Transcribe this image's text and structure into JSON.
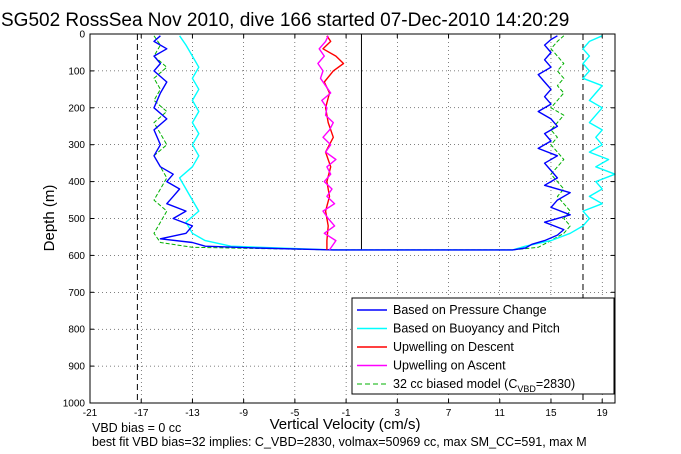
{
  "chart_data": {
    "type": "line",
    "title": "SG502 RossSea Nov 2010, dive 166 started 07-Dec-2010 14:20:29",
    "xlabel": "Vertical Velocity (cm/s)",
    "ylabel": "Depth (m)",
    "xlim": [
      -21,
      20
    ],
    "ylim": [
      1000,
      0
    ],
    "y_reversed": true,
    "x_ticks": [
      "-21",
      "-17",
      "-13",
      "-9",
      "-5",
      "-1",
      "3",
      "7",
      "11",
      "15",
      "19"
    ],
    "y_ticks": [
      "0",
      "100",
      "200",
      "300",
      "400",
      "500",
      "600",
      "700",
      "800",
      "900",
      "1000"
    ],
    "grid": true,
    "legend_position": "bottom-right",
    "legend": {
      "items": [
        {
          "label": "Based on Pressure Change",
          "color": "#0000ff",
          "style": "solid"
        },
        {
          "label": "Based on Buoyancy and Pitch",
          "color": "#00ffff",
          "style": "solid"
        },
        {
          "label": "Upwelling on Descent",
          "color": "#ff0000",
          "style": "solid"
        },
        {
          "label": "Upwelling on Ascent",
          "color": "#ff00ff",
          "style": "solid"
        }
      ],
      "model_label_prefix": "32 cc biased model (C",
      "model_label_sub": "VBD",
      "model_label_suffix": "=2830)",
      "model_color": "#00b000"
    },
    "reference_lines": {
      "dashed_x": [
        -17.3,
        17.5
      ],
      "solid_x": [
        0.2
      ],
      "solid_x_extent": [
        0,
        585
      ]
    },
    "series": [
      {
        "name": "Based on Pressure Change",
        "color": "#0000ff",
        "depth": [
          5,
          20,
          40,
          60,
          80,
          100,
          130,
          160,
          200,
          230,
          260,
          300,
          330,
          360,
          380,
          400,
          420,
          440,
          460,
          480,
          500,
          520,
          540,
          555,
          565,
          575,
          580,
          585,
          585,
          580,
          570,
          560,
          545,
          530,
          510,
          490,
          470,
          450,
          430,
          410,
          390,
          370,
          350,
          330,
          310,
          290,
          270,
          250,
          230,
          210,
          190,
          170,
          150,
          130,
          110,
          90,
          70,
          50,
          30,
          15,
          5
        ],
        "velocity": [
          -15.5,
          -16,
          -15,
          -16,
          -15.5,
          -16,
          -15,
          -15.5,
          -16,
          -15,
          -16,
          -15.5,
          -16,
          -15.5,
          -14.5,
          -15,
          -14,
          -14.5,
          -15,
          -13.5,
          -14.5,
          -13,
          -13.5,
          -15.5,
          -13,
          -12,
          -8,
          -2,
          12,
          13,
          13.5,
          14.5,
          15.5,
          16,
          14.5,
          16.5,
          15,
          15.5,
          16.5,
          14.5,
          15.5,
          15,
          14.5,
          15.5,
          14,
          15,
          14.5,
          15.5,
          15,
          14,
          15,
          14.5,
          15,
          14.5,
          14,
          15,
          14.5,
          15,
          14.5,
          15,
          15.5
        ]
      },
      {
        "name": "Based on Buoyancy and Pitch",
        "color": "#00ffff",
        "depth": [
          5,
          30,
          60,
          90,
          120,
          150,
          180,
          210,
          240,
          270,
          300,
          330,
          360,
          390,
          420,
          450,
          480,
          510,
          540,
          560,
          575,
          585,
          585,
          575,
          560,
          540,
          520,
          500,
          480,
          460,
          440,
          420,
          400,
          380,
          360,
          340,
          320,
          300,
          280,
          260,
          240,
          220,
          200,
          180,
          160,
          140,
          120,
          100,
          80,
          60,
          40,
          20,
          5
        ],
        "velocity": [
          -14,
          -13.5,
          -13,
          -12.5,
          -13,
          -12.5,
          -13,
          -12.5,
          -13,
          -12.5,
          -13,
          -12.5,
          -13,
          -14,
          -13.5,
          -13,
          -12.5,
          -13.5,
          -13,
          -12,
          -10,
          -2,
          12,
          13,
          15,
          16.5,
          17.5,
          18,
          17.5,
          19,
          18,
          19,
          18.5,
          20,
          18.5,
          19.5,
          18,
          19,
          18.5,
          19,
          18,
          18.5,
          19,
          18,
          18.5,
          19,
          17.5,
          18,
          17.5,
          18,
          17.5,
          18,
          19
        ]
      },
      {
        "name": "Upwelling on Descent",
        "color": "#ff0000",
        "depth": [
          5,
          20,
          40,
          60,
          80,
          100,
          130,
          160,
          200,
          240,
          280,
          320,
          360,
          400,
          440,
          480,
          520,
          560,
          585
        ],
        "velocity": [
          -2.5,
          -2.2,
          -2.8,
          -1.8,
          -1.2,
          -2,
          -2.7,
          -2.3,
          -2.6,
          -2.4,
          -2,
          -2.6,
          -2.2,
          -2.5,
          -2.3,
          -2.6,
          -2.4,
          -2.5,
          -2.5
        ]
      },
      {
        "name": "Upwelling on Ascent",
        "color": "#ff00ff",
        "depth": [
          585,
          560,
          540,
          520,
          500,
          480,
          460,
          440,
          420,
          400,
          380,
          360,
          340,
          320,
          300,
          280,
          260,
          240,
          220,
          200,
          180,
          160,
          140,
          120,
          100,
          80,
          60,
          40,
          20,
          5
        ],
        "velocity": [
          -2.3,
          -1.8,
          -2.7,
          -1.9,
          -2.4,
          -2.8,
          -1.9,
          -2.5,
          -2.1,
          -2.7,
          -2.2,
          -2.5,
          -1.8,
          -2.6,
          -2.2,
          -2.8,
          -2.3,
          -2,
          -2.6,
          -2.5,
          -2.9,
          -2.2,
          -2.6,
          -3,
          -2.8,
          -3.2,
          -2.7,
          -3.1,
          -2.6,
          -2.4
        ]
      },
      {
        "name": "32 cc biased model (CVBD=2830)",
        "color": "#00b000",
        "dashed": false,
        "depth": [
          5,
          30,
          60,
          90,
          120,
          150,
          180,
          210,
          240,
          270,
          300,
          330,
          360,
          390,
          420,
          450,
          480,
          510,
          540,
          565,
          578,
          585,
          585,
          578,
          560,
          540,
          520,
          500,
          480,
          460,
          440,
          420,
          400,
          380,
          360,
          340,
          320,
          300,
          280,
          260,
          240,
          220,
          200,
          180,
          160,
          140,
          120,
          100,
          80,
          60,
          40,
          20,
          5
        ],
        "velocity": [
          -16,
          -15.5,
          -16,
          -15,
          -16,
          -15.5,
          -16,
          -15,
          -16,
          -15.5,
          -15,
          -16,
          -15.5,
          -15,
          -15.5,
          -16,
          -15,
          -15.5,
          -16,
          -15.5,
          -13,
          -2,
          12,
          14,
          15,
          16,
          16.5,
          16,
          16.5,
          16,
          15.5,
          16,
          15.5,
          15,
          15.5,
          16,
          15.5,
          15,
          15.5,
          15,
          15.5,
          16,
          15,
          15.5,
          16,
          15.5,
          16,
          15.5,
          16,
          15.5,
          15,
          15.5,
          16
        ]
      }
    ]
  },
  "footer": {
    "line1": "VBD bias = 0 cc",
    "line2": "best fit VBD bias=32 implies: C_VBD=2830, volmax=50969 cc, max SM_CC=591, max M"
  }
}
